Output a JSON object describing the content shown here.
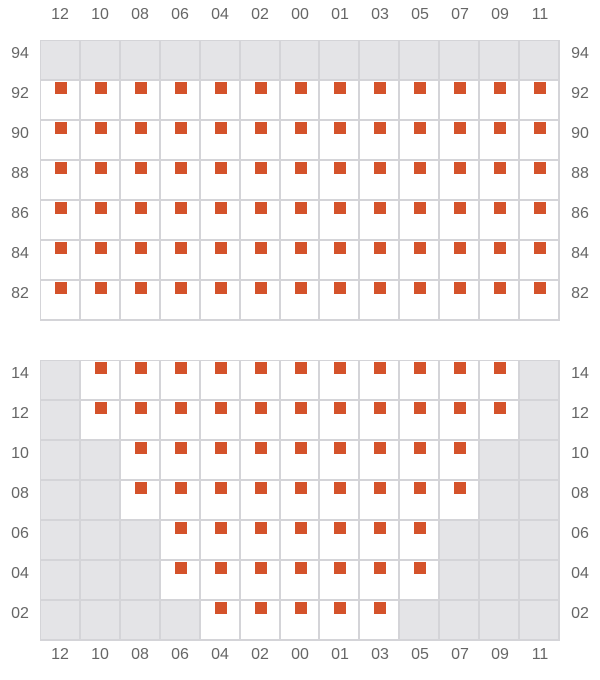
{
  "colors": {
    "mark": "#d4522a",
    "disabled": "#e4e4e7",
    "grid": "#d4d4d8"
  },
  "columns": [
    "12",
    "10",
    "08",
    "06",
    "04",
    "02",
    "00",
    "01",
    "03",
    "05",
    "07",
    "09",
    "11"
  ],
  "legend": {
    "M": "marked",
    "D": "disabled",
    "E": "empty"
  },
  "top_block": {
    "rows": [
      {
        "label": "94",
        "cells": "DDDDDDDDDDDDD"
      },
      {
        "label": "92",
        "cells": "MMMMMMMMMMMMM"
      },
      {
        "label": "90",
        "cells": "MMMMMMMMMMMMM"
      },
      {
        "label": "88",
        "cells": "MMMMMMMMMMMMM"
      },
      {
        "label": "86",
        "cells": "MMMMMMMMMMMMM"
      },
      {
        "label": "84",
        "cells": "MMMMMMMMMMMMM"
      },
      {
        "label": "82",
        "cells": "MMMMMMMMMMMMM"
      }
    ]
  },
  "bottom_block": {
    "rows": [
      {
        "label": "14",
        "cells": "DMMMMMMMMMMMD"
      },
      {
        "label": "12",
        "cells": "DMMMMMMMMMMMD"
      },
      {
        "label": "10",
        "cells": "DDMMMMMMMMMDD"
      },
      {
        "label": "08",
        "cells": "DDMMMMMMMMMDD"
      },
      {
        "label": "06",
        "cells": "DDDMMMMMMMDDD"
      },
      {
        "label": "04",
        "cells": "DDDMMMMMMMDDD"
      },
      {
        "label": "02",
        "cells": "DDDDMMMMMDDDD"
      }
    ]
  }
}
